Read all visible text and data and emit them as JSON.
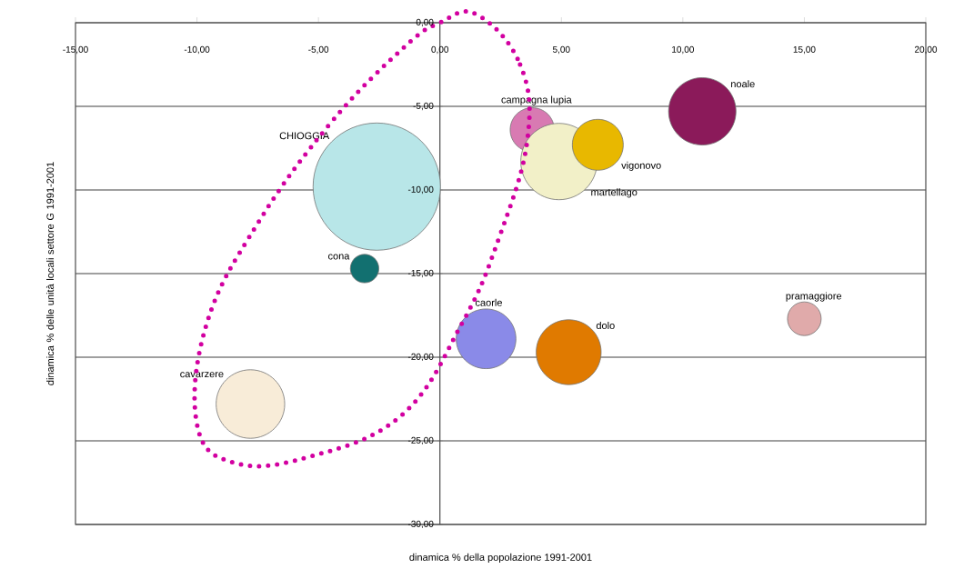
{
  "chart_data": {
    "type": "bubble",
    "xlabel": "dinamica % della popolazione 1991-2001",
    "ylabel": "dinamica % delle unità locali settore G 1991-2001",
    "xlim": [
      -15,
      20
    ],
    "ylim": [
      -30,
      0
    ],
    "xticks": [
      {
        "value": -15,
        "label": "-15,00"
      },
      {
        "value": -10,
        "label": "-10,00"
      },
      {
        "value": -5,
        "label": "-5,00"
      },
      {
        "value": 0,
        "label": "0,00"
      },
      {
        "value": 5,
        "label": "5,00"
      },
      {
        "value": 10,
        "label": "10,00"
      },
      {
        "value": 15,
        "label": "15,00"
      },
      {
        "value": 20,
        "label": "20,00"
      }
    ],
    "yticks": [
      {
        "value": 0,
        "label": "0,00"
      },
      {
        "value": -5,
        "label": "-5,00"
      },
      {
        "value": -10,
        "label": "-10,00"
      },
      {
        "value": -15,
        "label": "-15,00"
      },
      {
        "value": -20,
        "label": "-20,00"
      },
      {
        "value": -25,
        "label": "-25,00"
      },
      {
        "value": -30,
        "label": "-30,00"
      }
    ],
    "grid": "y",
    "series": [
      {
        "name": "CHIOGGIA",
        "color": "#b8e6e8",
        "x": [
          -2.6
        ],
        "values": [
          -9.8
        ],
        "sizes": [
          1
        ]
      },
      {
        "name": "cona",
        "color": "#127070",
        "x": [
          -3.1
        ],
        "values": [
          -14.7
        ],
        "sizes": [
          0.05
        ]
      },
      {
        "name": "campagna lupia",
        "color": "#d87ab2",
        "x": [
          3.8
        ],
        "values": [
          -6.4
        ],
        "sizes": [
          0.12
        ]
      },
      {
        "name": "martellago",
        "color": "#f2f0c8",
        "x": [
          4.9
        ],
        "values": [
          -8.3
        ],
        "sizes": [
          0.36
        ]
      },
      {
        "name": "vigonovo",
        "color": "#e8b800",
        "x": [
          6.5
        ],
        "values": [
          -7.3
        ],
        "sizes": [
          0.16
        ]
      },
      {
        "name": "noale",
        "color": "#8b1a5a",
        "x": [
          10.8
        ],
        "values": [
          -5.3
        ],
        "sizes": [
          0.28
        ]
      },
      {
        "name": "caorle",
        "color": "#8a8ae8",
        "x": [
          1.9
        ],
        "values": [
          -18.9
        ],
        "sizes": [
          0.22
        ]
      },
      {
        "name": "dolo",
        "color": "#e07a00",
        "x": [
          5.3
        ],
        "values": [
          -19.7
        ],
        "sizes": [
          0.26
        ]
      },
      {
        "name": "pramaggiore",
        "color": "#e0aaaa",
        "x": [
          15.0
        ],
        "values": [
          -17.7
        ],
        "sizes": [
          0.07
        ]
      },
      {
        "name": "cavarzere",
        "color": "#f8ecd8",
        "x": [
          -7.8
        ],
        "values": [
          -22.8
        ],
        "sizes": [
          0.29
        ]
      }
    ]
  }
}
